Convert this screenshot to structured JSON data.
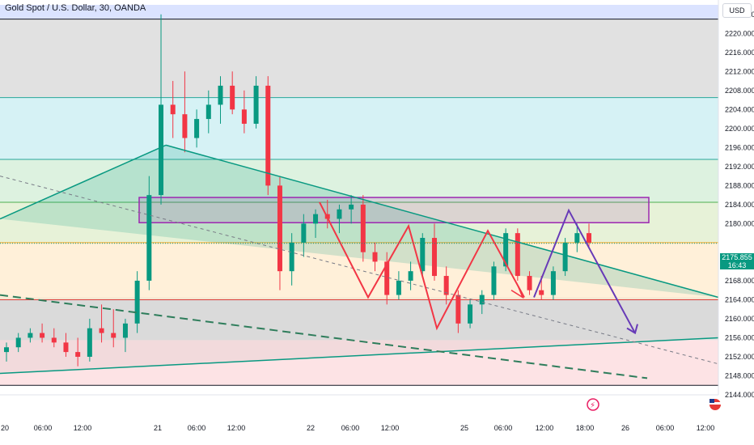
{
  "header": {
    "symbol_title": "Gold Spot / U.S. Dollar, 30, OANDA",
    "currency": "USD"
  },
  "price_axis": {
    "ticks": [
      "2224.000",
      "2220.000",
      "2216.000",
      "2212.000",
      "2208.000",
      "2204.000",
      "2200.000",
      "2196.000",
      "2192.000",
      "2188.000",
      "2184.000",
      "2180.000",
      "2172.000",
      "2168.000",
      "2164.000",
      "2160.000",
      "2156.000",
      "2152.000",
      "2148.000",
      "2144.000"
    ],
    "last_price": "2175.855",
    "countdown": "16:43"
  },
  "time_axis": {
    "labels": [
      "20",
      "06:00",
      "12:00",
      "21",
      "06:00",
      "12:00",
      "22",
      "06:00",
      "12:00",
      "25",
      "06:00",
      "12:00",
      "18:00",
      "26",
      "06:00",
      "12:00"
    ]
  },
  "colors": {
    "bull": "#089981",
    "bear": "#f23645",
    "zigzag": "#f23645",
    "projection": "#673ab7",
    "trendline": "#089981"
  },
  "chart_data": {
    "type": "candlestick",
    "title": "Gold Spot / U.S. Dollar, 30, OANDA",
    "xlabel": "",
    "ylabel": "",
    "ylim": [
      2144,
      2226
    ],
    "zones": [
      {
        "from": 2223,
        "to": 2226,
        "color": "#dbe3ff"
      },
      {
        "from": 2206.5,
        "to": 2223,
        "color": "#e1e1e1"
      },
      {
        "from": 2193.5,
        "to": 2206.5,
        "color": "#d6f2f5"
      },
      {
        "from": 2184.5,
        "to": 2193.5,
        "color": "#ddf2e0"
      },
      {
        "from": 2176,
        "to": 2184.5,
        "color": "#e7f2d8"
      },
      {
        "from": 2164,
        "to": 2176,
        "color": "#fff0d9"
      },
      {
        "from": 2155.5,
        "to": 2164,
        "color": "#e3e3e3"
      },
      {
        "from": 2146,
        "to": 2155.5,
        "color": "#fde3e5"
      }
    ],
    "horizontal_levels": [
      2223,
      2206.5,
      2193.5,
      2184.5,
      2176,
      2164,
      2146
    ],
    "rectangle": {
      "price_top": 2185.5,
      "price_bottom": 2180.2
    },
    "zigzag": [
      2184.5,
      2164.5,
      2179.5,
      2158,
      2178.5,
      2164.5
    ],
    "projection": [
      2164.5,
      2182.8,
      2157
    ],
    "candles": [
      {
        "o": 2153,
        "h": 2155,
        "l": 2151,
        "c": 2154
      },
      {
        "o": 2154,
        "h": 2157,
        "l": 2153,
        "c": 2156
      },
      {
        "o": 2156,
        "h": 2158,
        "l": 2155,
        "c": 2157
      },
      {
        "o": 2157,
        "h": 2159,
        "l": 2155,
        "c": 2156
      },
      {
        "o": 2156,
        "h": 2158,
        "l": 2154,
        "c": 2155
      },
      {
        "o": 2155,
        "h": 2157,
        "l": 2152,
        "c": 2153
      },
      {
        "o": 2153,
        "h": 2156,
        "l": 2150,
        "c": 2152
      },
      {
        "o": 2152,
        "h": 2160,
        "l": 2151,
        "c": 2158
      },
      {
        "o": 2158,
        "h": 2163,
        "l": 2155,
        "c": 2157
      },
      {
        "o": 2157,
        "h": 2162,
        "l": 2154,
        "c": 2156
      },
      {
        "o": 2156,
        "h": 2160,
        "l": 2153,
        "c": 2159
      },
      {
        "o": 2159,
        "h": 2170,
        "l": 2157,
        "c": 2168
      },
      {
        "o": 2168,
        "h": 2190,
        "l": 2166,
        "c": 2186
      },
      {
        "o": 2186,
        "h": 2224,
        "l": 2184,
        "c": 2205
      },
      {
        "o": 2205,
        "h": 2210,
        "l": 2198,
        "c": 2203
      },
      {
        "o": 2203,
        "h": 2212,
        "l": 2195,
        "c": 2198
      },
      {
        "o": 2198,
        "h": 2204,
        "l": 2196,
        "c": 2202
      },
      {
        "o": 2202,
        "h": 2208,
        "l": 2199,
        "c": 2205
      },
      {
        "o": 2205,
        "h": 2211,
        "l": 2201,
        "c": 2209
      },
      {
        "o": 2209,
        "h": 2212,
        "l": 2203,
        "c": 2204
      },
      {
        "o": 2204,
        "h": 2208,
        "l": 2199,
        "c": 2201
      },
      {
        "o": 2201,
        "h": 2211,
        "l": 2200,
        "c": 2209
      },
      {
        "o": 2209,
        "h": 2211,
        "l": 2186,
        "c": 2188
      },
      {
        "o": 2188,
        "h": 2190,
        "l": 2166,
        "c": 2170
      },
      {
        "o": 2170,
        "h": 2178,
        "l": 2167,
        "c": 2176
      },
      {
        "o": 2176,
        "h": 2182,
        "l": 2173,
        "c": 2180
      },
      {
        "o": 2180,
        "h": 2183,
        "l": 2177,
        "c": 2182
      },
      {
        "o": 2182,
        "h": 2185,
        "l": 2179,
        "c": 2181
      },
      {
        "o": 2181,
        "h": 2184,
        "l": 2178,
        "c": 2183
      },
      {
        "o": 2183,
        "h": 2186,
        "l": 2180,
        "c": 2184
      },
      {
        "o": 2184,
        "h": 2186,
        "l": 2172,
        "c": 2174
      },
      {
        "o": 2174,
        "h": 2176,
        "l": 2170,
        "c": 2172
      },
      {
        "o": 2172,
        "h": 2174,
        "l": 2163,
        "c": 2165
      },
      {
        "o": 2165,
        "h": 2170,
        "l": 2164,
        "c": 2168
      },
      {
        "o": 2168,
        "h": 2172,
        "l": 2166,
        "c": 2170
      },
      {
        "o": 2170,
        "h": 2178,
        "l": 2169,
        "c": 2177
      },
      {
        "o": 2177,
        "h": 2180,
        "l": 2168,
        "c": 2169
      },
      {
        "o": 2169,
        "h": 2171,
        "l": 2163,
        "c": 2165
      },
      {
        "o": 2165,
        "h": 2166,
        "l": 2157,
        "c": 2159
      },
      {
        "o": 2159,
        "h": 2164,
        "l": 2158,
        "c": 2163
      },
      {
        "o": 2163,
        "h": 2166,
        "l": 2161,
        "c": 2165
      },
      {
        "o": 2165,
        "h": 2172,
        "l": 2164,
        "c": 2171
      },
      {
        "o": 2171,
        "h": 2179,
        "l": 2170,
        "c": 2178
      },
      {
        "o": 2178,
        "h": 2179,
        "l": 2168,
        "c": 2169
      },
      {
        "o": 2169,
        "h": 2170,
        "l": 2165,
        "c": 2166
      },
      {
        "o": 2166,
        "h": 2169,
        "l": 2164,
        "c": 2165
      },
      {
        "o": 2165,
        "h": 2171,
        "l": 2164,
        "c": 2170
      },
      {
        "o": 2170,
        "h": 2177,
        "l": 2169,
        "c": 2176
      },
      {
        "o": 2176,
        "h": 2180,
        "l": 2174,
        "c": 2178
      },
      {
        "o": 2178,
        "h": 2180,
        "l": 2175,
        "c": 2176
      }
    ]
  }
}
